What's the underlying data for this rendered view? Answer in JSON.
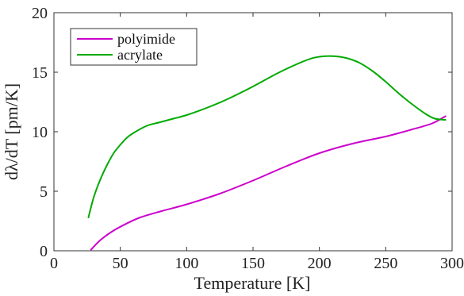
{
  "chart_data": {
    "type": "line",
    "title": "",
    "xlabel": "Temperature   [K]",
    "ylabel": "dλ/dT   [pm/K]",
    "xlim": [
      0,
      300
    ],
    "ylim": [
      0,
      20
    ],
    "xticks": [
      0,
      50,
      100,
      150,
      200,
      250,
      300
    ],
    "yticks": [
      0,
      5,
      10,
      15,
      20
    ],
    "xtick_labels": [
      "0",
      "50",
      "100",
      "150",
      "200",
      "250",
      "300"
    ],
    "ytick_labels": [
      "0",
      "5",
      "10",
      "15",
      "20"
    ],
    "grid": true,
    "legend_position": "top-left",
    "series": [
      {
        "name": "polyimide",
        "color": "#cc00cc",
        "x": [
          28,
          35,
          45,
          55,
          65,
          80,
          100,
          125,
          150,
          175,
          200,
          225,
          250,
          270,
          285,
          295
        ],
        "y": [
          0.1,
          0.9,
          1.7,
          2.3,
          2.8,
          3.3,
          3.9,
          4.8,
          5.9,
          7.1,
          8.2,
          9.0,
          9.6,
          10.2,
          10.7,
          11.3
        ]
      },
      {
        "name": "acrylate",
        "color": "#00aa00",
        "x": [
          26,
          30,
          35,
          40,
          45,
          50,
          55,
          60,
          70,
          80,
          90,
          100,
          115,
          130,
          150,
          170,
          190,
          200,
          210,
          220,
          230,
          240,
          250,
          260,
          270,
          280,
          287,
          295
        ],
        "y": [
          2.8,
          4.5,
          6.0,
          7.2,
          8.2,
          8.9,
          9.5,
          9.9,
          10.5,
          10.8,
          11.1,
          11.4,
          12.0,
          12.7,
          13.8,
          15.0,
          16.0,
          16.3,
          16.35,
          16.2,
          15.8,
          15.1,
          14.2,
          13.2,
          12.3,
          11.5,
          11.1,
          11.0
        ]
      }
    ]
  }
}
